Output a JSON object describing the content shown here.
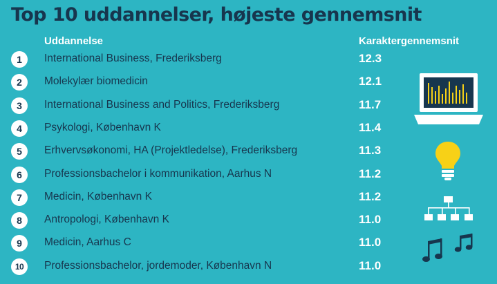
{
  "title": "Top 10 uddannelser, højeste gennemsnit",
  "header": {
    "education": "Uddannelse",
    "grade": "Karaktergennemsnit"
  },
  "icons": [
    "laptop-bar-chart-icon",
    "light-bulb-icon",
    "org-chart-icon",
    "music-notes-icon"
  ],
  "colors": {
    "background": "#2db5c3",
    "text_dark": "#17364e",
    "text_light": "#ffffff",
    "bulb": "#f7d117"
  },
  "chart_data": {
    "type": "table",
    "title": "Top 10 uddannelser, højeste gennemsnit",
    "columns": [
      "Uddannelse",
      "Karaktergennemsnit"
    ],
    "rows": [
      {
        "rank": "1",
        "name": "International Business, Frederiksberg",
        "value": "12.3"
      },
      {
        "rank": "2",
        "name": "Molekylær biomedicin",
        "value": "12.1"
      },
      {
        "rank": "3",
        "name": "International Business and Politics, Frederiksberg",
        "value": "11.7"
      },
      {
        "rank": "4",
        "name": "Psykologi, København K",
        "value": "11.4"
      },
      {
        "rank": "5",
        "name": "Erhvervsøkonomi, HA (Projektledelse), Frederiksberg",
        "value": "11.3"
      },
      {
        "rank": "6",
        "name": "Professionsbachelor i kommunikation, Aarhus N",
        "value": "11.2"
      },
      {
        "rank": "7",
        "name": "Medicin, København K",
        "value": "11.2"
      },
      {
        "rank": "8",
        "name": "Antropologi, København K",
        "value": "11.0"
      },
      {
        "rank": "9",
        "name": "Medicin, Aarhus C",
        "value": "11.0"
      },
      {
        "rank": "10",
        "name": "Professionsbachelor, jordemoder, København N",
        "value": "11.0"
      }
    ]
  }
}
